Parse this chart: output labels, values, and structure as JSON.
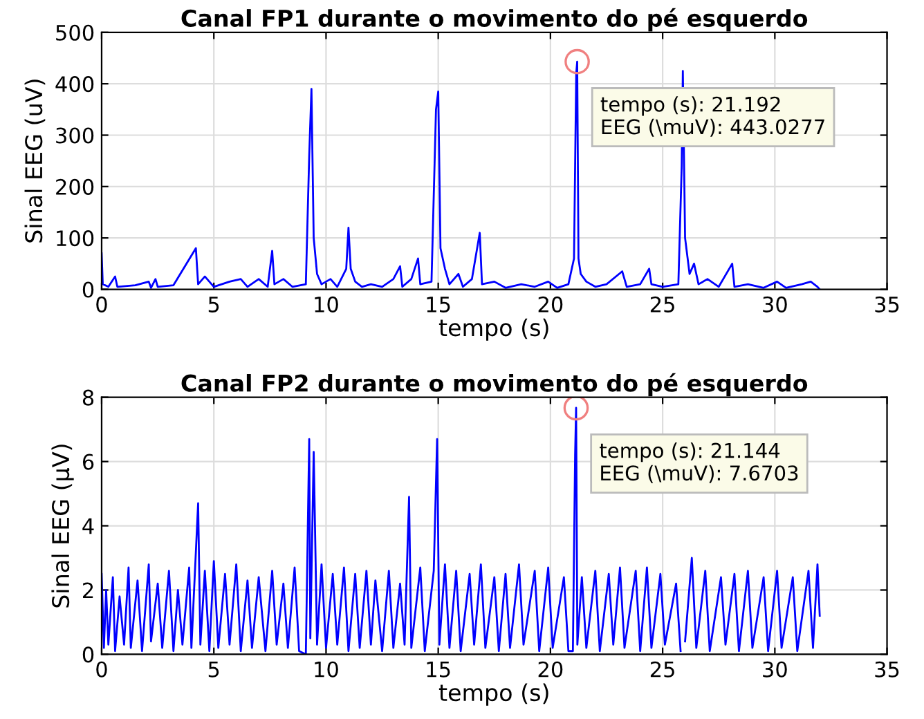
{
  "chart_data": [
    {
      "type": "line",
      "title": "Canal FP1 durante o movimento do pé esquerdo",
      "xlabel": "tempo (s)",
      "ylabel": "Sinal EEG (uV)",
      "xlim": [
        0,
        35
      ],
      "xticks": [
        0,
        5,
        10,
        15,
        20,
        25,
        30,
        35
      ],
      "ylim": [
        0,
        500
      ],
      "yticks": [
        0,
        100,
        200,
        300,
        400,
        500
      ],
      "grid": true,
      "legend": false,
      "marker": "none",
      "line_style": "solid",
      "annotations": [
        {
          "text": "tempo (s): 21.192\nEEG (\\muV): 443.0277",
          "x": 21.192,
          "y": 443.0277
        }
      ],
      "series": [
        {
          "color": "#0000ff",
          "x": [
            0,
            0.05,
            0.3,
            0.6,
            0.7,
            1.5,
            2.1,
            2.2,
            2.4,
            2.5,
            3.2,
            4.2,
            4.3,
            4.6,
            5,
            5.7,
            6.2,
            6.5,
            7,
            7.4,
            7.6,
            7.7,
            8.1,
            8.5,
            9.1,
            9.25,
            9.35,
            9.45,
            9.6,
            9.8,
            10.2,
            10.5,
            10.9,
            11.0,
            11.1,
            11.3,
            11.6,
            12,
            12.5,
            13,
            13.3,
            13.4,
            13.8,
            14.1,
            14.2,
            14.7,
            14.9,
            15.0,
            15.1,
            15.3,
            15.5,
            15.9,
            16.1,
            16.5,
            16.85,
            16.95,
            17.5,
            18,
            18.7,
            19.3,
            19.9,
            20.3,
            20.8,
            21.05,
            21.15,
            21.192,
            21.25,
            21.35,
            21.6,
            22,
            22.5,
            23.2,
            23.4,
            24,
            24.4,
            24.5,
            25,
            25.7,
            25.85,
            25.9,
            26.0,
            26.2,
            26.4,
            26.6,
            27,
            27.5,
            28.1,
            28.2,
            28.8,
            29.5,
            30.1,
            30.5,
            31.2,
            31.6,
            31.9,
            32
          ],
          "values": [
            70,
            10,
            5,
            25,
            5,
            8,
            15,
            3,
            20,
            5,
            8,
            80,
            10,
            25,
            5,
            15,
            20,
            5,
            20,
            5,
            75,
            10,
            20,
            5,
            10,
            260,
            390,
            100,
            30,
            10,
            20,
            5,
            40,
            120,
            40,
            15,
            5,
            10,
            5,
            20,
            45,
            5,
            20,
            60,
            10,
            15,
            350,
            385,
            80,
            40,
            10,
            30,
            5,
            20,
            110,
            10,
            15,
            3,
            10,
            5,
            15,
            3,
            10,
            60,
            420,
            443.0277,
            60,
            30,
            15,
            5,
            10,
            35,
            5,
            10,
            40,
            10,
            5,
            10,
            240,
            425,
            100,
            30,
            50,
            10,
            20,
            5,
            50,
            5,
            10,
            3,
            15,
            3,
            10,
            15,
            5,
            0
          ]
        }
      ]
    },
    {
      "type": "line",
      "title": "Canal FP2 durante o movimento do pé esquerdo",
      "xlabel": "tempo (s)",
      "ylabel": "Sinal EEG (μV)",
      "xlim": [
        0,
        35
      ],
      "xticks": [
        0,
        5,
        10,
        15,
        20,
        25,
        30,
        35
      ],
      "ylim": [
        0,
        8
      ],
      "yticks": [
        0,
        2,
        4,
        6,
        8
      ],
      "grid": true,
      "legend": false,
      "marker": "none",
      "line_style": "solid",
      "annotations": [
        {
          "text": "tempo (s): 21.144\nEEG (\\muV): 7.6703",
          "x": 21.144,
          "y": 7.6703
        }
      ],
      "series": [
        {
          "color": "#0000ff",
          "x": [
            0,
            0.1,
            0.2,
            0.3,
            0.5,
            0.6,
            0.8,
            1.0,
            1.2,
            1.3,
            1.6,
            1.8,
            2.1,
            2.2,
            2.5,
            2.7,
            3.0,
            3.2,
            3.4,
            3.6,
            3.9,
            4.0,
            4.3,
            4.4,
            4.6,
            4.8,
            5.0,
            5.2,
            5.5,
            5.7,
            6.0,
            6.2,
            6.5,
            6.7,
            7.0,
            7.3,
            7.6,
            7.8,
            8.1,
            8.3,
            8.6,
            8.8,
            9.1,
            9.25,
            9.3,
            9.45,
            9.6,
            9.8,
            10.0,
            10.3,
            10.5,
            10.8,
            11.0,
            11.3,
            11.5,
            11.8,
            12.0,
            12.2,
            12.5,
            12.8,
            13.0,
            13.3,
            13.5,
            13.7,
            13.8,
            14.2,
            14.4,
            14.8,
            14.95,
            15.05,
            15.3,
            15.5,
            15.8,
            16.0,
            16.4,
            16.6,
            16.9,
            17.1,
            17.5,
            17.7,
            18.0,
            18.2,
            18.6,
            18.8,
            19.3,
            19.5,
            19.9,
            20.1,
            20.6,
            20.8,
            21.0,
            21.1,
            21.144,
            21.2,
            21.4,
            21.6,
            22.0,
            22.2,
            22.6,
            22.8,
            23.1,
            23.3,
            23.8,
            24.0,
            24.3,
            24.5,
            24.9,
            25.1,
            25.6,
            25.8,
            25.9,
            26.0,
            26.3,
            26.5,
            26.9,
            27.1,
            27.6,
            27.8,
            28.2,
            28.4,
            28.8,
            29.0,
            29.5,
            29.7,
            30.1,
            30.3,
            30.8,
            31.0,
            31.5,
            31.7,
            31.9,
            32.0
          ],
          "values": [
            2.5,
            0.2,
            2,
            0.3,
            2.4,
            0.1,
            1.8,
            0.3,
            2.7,
            0.2,
            2.3,
            0.1,
            2.8,
            0.4,
            2.2,
            0.2,
            2.6,
            0.1,
            2.0,
            0.3,
            2.7,
            0.2,
            4.7,
            0.3,
            2.6,
            0.1,
            2.9,
            0.2,
            2.5,
            0.3,
            2.8,
            0.1,
            2.3,
            0.2,
            2.4,
            0.1,
            2.6,
            0.3,
            2.2,
            0.2,
            2.7,
            0.1,
            0.0,
            6.7,
            0.5,
            6.3,
            0.3,
            2.8,
            0.2,
            2.5,
            0.3,
            2.7,
            0.1,
            2.5,
            0.2,
            2.6,
            0.3,
            2.3,
            0.1,
            2.6,
            0.2,
            2.2,
            0.3,
            4.9,
            0.2,
            2.7,
            0.1,
            2.6,
            6.7,
            0.3,
            2.8,
            0.2,
            2.6,
            0.1,
            2.5,
            0.3,
            2.8,
            0.2,
            2.4,
            0.1,
            2.5,
            0.2,
            2.8,
            0.3,
            2.6,
            0.1,
            2.7,
            0.2,
            2.4,
            0.1,
            0.1,
            6.2,
            7.6703,
            0.3,
            2.4,
            0.2,
            2.6,
            0.1,
            2.5,
            0.3,
            2.7,
            0.2,
            2.6,
            0.1,
            2.7,
            0.2,
            2.5,
            0.3,
            2.2,
            0.1,
            null,
            0.4,
            3.0,
            0.2,
            2.6,
            0.1,
            2.4,
            0.3,
            2.5,
            0.1,
            2.6,
            0.2,
            2.4,
            0.1,
            2.6,
            0.2,
            2.4,
            0.1,
            2.6,
            0.2,
            2.8,
            1.2
          ]
        }
      ]
    }
  ]
}
